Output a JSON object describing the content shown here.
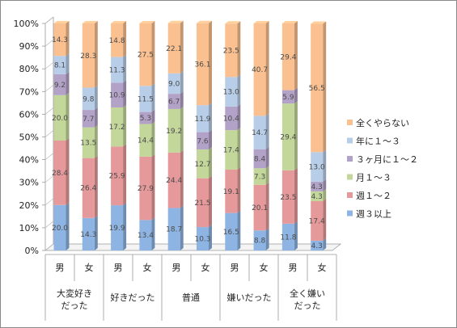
{
  "chart_data": {
    "type": "bar",
    "stacked": true,
    "percent": true,
    "title": "",
    "xlabel": "",
    "ylabel": "",
    "ylim": [
      0,
      100
    ],
    "y_ticks": [
      "0%",
      "10%",
      "20%",
      "30%",
      "40%",
      "50%",
      "60%",
      "70%",
      "80%",
      "90%",
      "100%"
    ],
    "grid": false,
    "legend_position": "right",
    "sub_categories": [
      "男",
      "女",
      "男",
      "女",
      "男",
      "女",
      "男",
      "女",
      "男",
      "女"
    ],
    "groups": [
      {
        "label_lines": [
          "大変好き",
          "だった"
        ]
      },
      {
        "label_lines": [
          "好きだった"
        ]
      },
      {
        "label_lines": [
          "普通"
        ]
      },
      {
        "label_lines": [
          "嫌いだった"
        ]
      },
      {
        "label_lines": [
          "全く嫌い",
          "だった"
        ]
      }
    ],
    "series": [
      {
        "name": "週３以上",
        "color": "#8db4e2",
        "values": [
          20.0,
          14.3,
          19.9,
          13.4,
          18.7,
          10.3,
          16.5,
          8.8,
          11.8,
          4.3
        ]
      },
      {
        "name": "週１～２",
        "color": "#e6999a",
        "values": [
          28.4,
          26.4,
          25.9,
          27.9,
          24.4,
          21.5,
          19.1,
          20.1,
          23.5,
          17.4
        ]
      },
      {
        "name": "月１～３",
        "color": "#c4d79b",
        "values": [
          20.0,
          13.5,
          17.2,
          14.4,
          19.2,
          12.7,
          17.4,
          7.3,
          29.4,
          4.3
        ]
      },
      {
        "name": "３ヶ月に１～２",
        "color": "#b3a2c7",
        "values": [
          9.2,
          7.7,
          10.9,
          5.3,
          6.7,
          7.6,
          10.4,
          8.4,
          5.9,
          4.3
        ]
      },
      {
        "name": "年に１～３",
        "color": "#b7cde8",
        "values": [
          8.1,
          9.8,
          11.3,
          11.5,
          9.0,
          11.9,
          13.0,
          14.7,
          0.0,
          13.0
        ]
      },
      {
        "name": "全くやらない",
        "color": "#fac090",
        "values": [
          14.3,
          28.3,
          14.8,
          27.5,
          22.1,
          36.1,
          23.5,
          40.7,
          29.4,
          56.5
        ]
      }
    ]
  }
}
